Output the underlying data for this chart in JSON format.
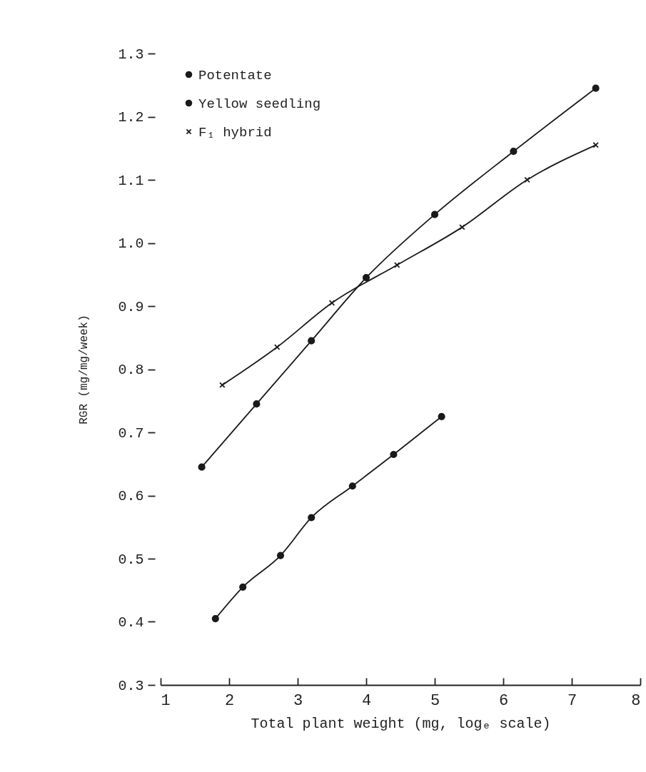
{
  "chart_data": {
    "type": "line",
    "xlabel": "Total plant weight (mg, logₑ scale)",
    "ylabel": "RGR (mg/mg/week)",
    "xlim": [
      1,
      8
    ],
    "xticks": [
      1,
      2,
      3,
      4,
      5,
      6,
      7,
      8
    ],
    "ylim": [
      0.3,
      1.3
    ],
    "yticks": [
      0.3,
      0.4,
      0.5,
      0.6,
      0.7,
      0.8,
      0.9,
      {
        "value": 1,
        "label": "1.0"
      },
      1.1,
      1.2,
      1.3
    ],
    "grid": false,
    "legend": "top left",
    "line_style": "solid",
    "series": [
      {
        "name": "Potentate",
        "color": "#1a1a1a",
        "marker": "circle",
        "x": [
          1.6,
          2.4,
          3.2,
          4.0,
          5.0,
          6.15,
          7.35
        ],
        "values": [
          0.645,
          0.745,
          0.845,
          0.945,
          1.045,
          1.145,
          1.245
        ]
      },
      {
        "name": "Yellow seedling",
        "color": "#1a1a1a",
        "marker": "circle",
        "x": [
          1.8,
          2.2,
          2.75,
          3.2,
          3.8,
          4.4,
          5.1
        ],
        "values": [
          0.405,
          0.455,
          0.505,
          0.565,
          0.615,
          0.665,
          0.725
        ]
      },
      {
        "name": "F₁ hybrid",
        "color": "#1a1a1a",
        "marker": "cross",
        "x": [
          1.9,
          2.7,
          3.5,
          4.45,
          5.4,
          6.35,
          7.35
        ],
        "values": [
          0.775,
          0.835,
          0.905,
          0.965,
          1.025,
          1.1,
          1.155
        ]
      }
    ]
  }
}
